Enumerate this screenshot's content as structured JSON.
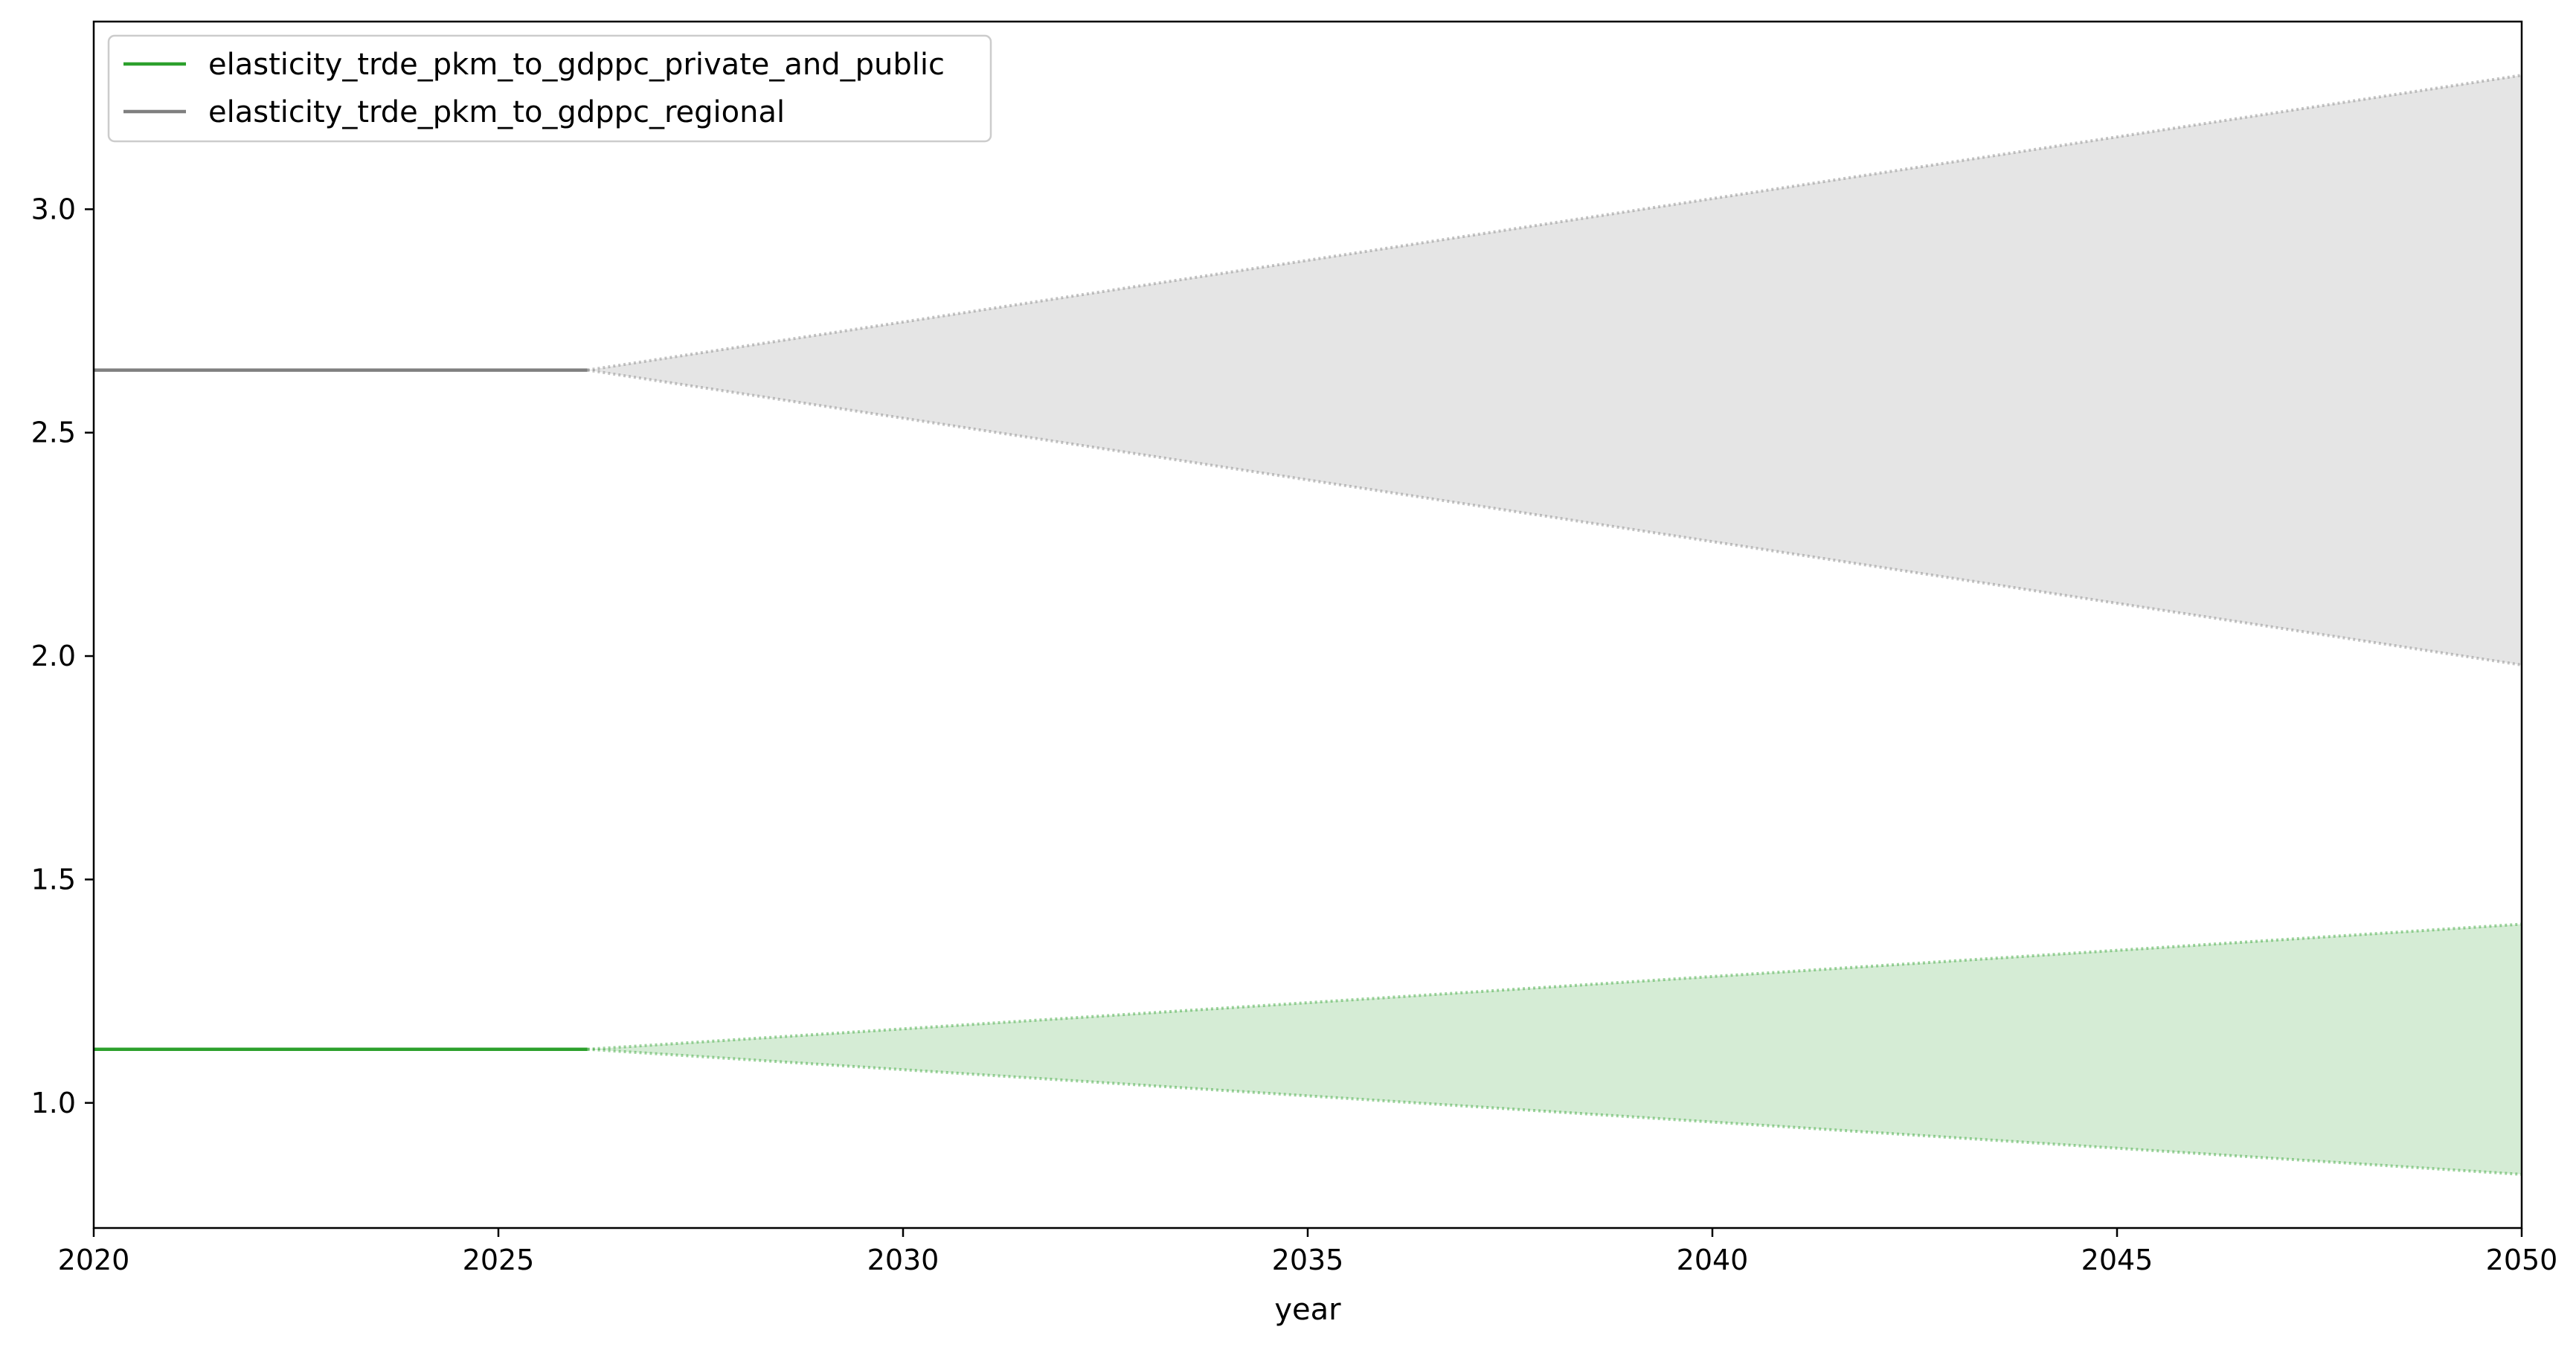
{
  "chart_data": {
    "type": "line",
    "title": "",
    "xlabel": "year",
    "ylabel": "",
    "xlim": [
      2020,
      2050
    ],
    "ylim": [
      0.72,
      3.42
    ],
    "xticks": [
      2020,
      2025,
      2030,
      2035,
      2040,
      2045,
      2050
    ],
    "xtick_labels": [
      "2020",
      "2025",
      "2030",
      "2035",
      "2040",
      "2045",
      "2050"
    ],
    "yticks": [
      1.0,
      1.5,
      2.0,
      2.5,
      3.0
    ],
    "ytick_labels": [
      "1.0",
      "1.5",
      "2.0",
      "2.5",
      "3.0"
    ],
    "grid": false,
    "legend_position": "top-left",
    "series": [
      {
        "name": "elasticity_trde_pkm_to_gdppc_private_and_public",
        "color": "#2ca02c",
        "x": [
          2020,
          2026.1
        ],
        "y": [
          1.12,
          1.12
        ],
        "band": {
          "x": [
            2026.1,
            2050
          ],
          "upper": [
            1.12,
            1.4
          ],
          "lower": [
            1.12,
            0.84
          ]
        }
      },
      {
        "name": "elasticity_trde_pkm_to_gdppc_regional",
        "color": "#7f7f7f",
        "x": [
          2020,
          2026.1
        ],
        "y": [
          2.64,
          2.64
        ],
        "band": {
          "x": [
            2026.1,
            2050
          ],
          "upper": [
            2.64,
            3.3
          ],
          "lower": [
            2.64,
            1.98
          ]
        }
      }
    ]
  }
}
